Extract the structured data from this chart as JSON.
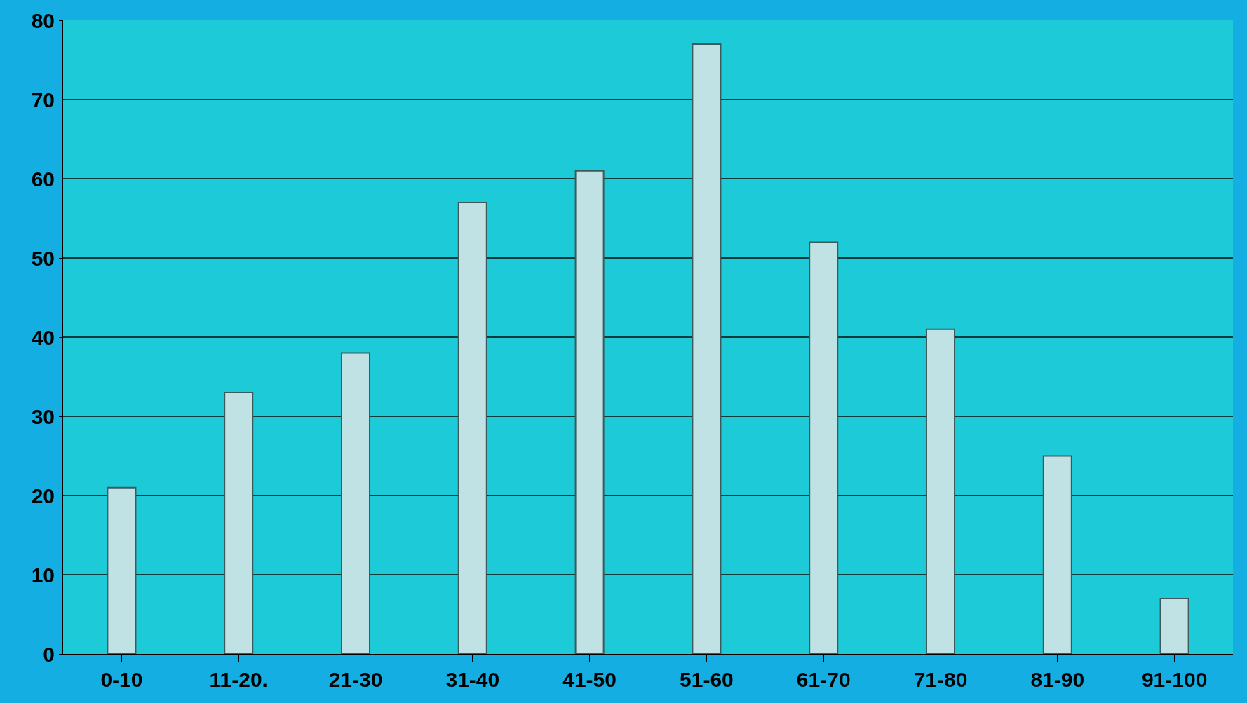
{
  "chart_data": {
    "type": "bar",
    "categories": [
      "0-10",
      "11-20.",
      "21-30",
      "31-40",
      "41-50",
      "51-60",
      "61-70",
      "71-80",
      "81-90",
      "91-100"
    ],
    "values": [
      21,
      33,
      38,
      57,
      61,
      77,
      52,
      41,
      25,
      7
    ],
    "color": "#c0e2e4",
    "ylim": [
      0,
      80
    ],
    "yticks": [
      0,
      10,
      20,
      30,
      40,
      50,
      60,
      70,
      80
    ],
    "grid": "y"
  }
}
